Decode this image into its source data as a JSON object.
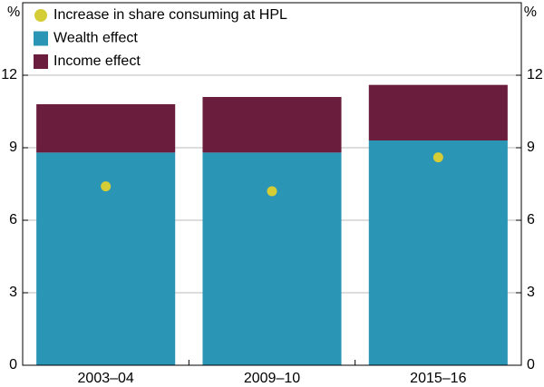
{
  "chart_data": {
    "type": "bar",
    "stacked": true,
    "y_label": "%",
    "y2_label": "%",
    "categories": [
      "2003–04",
      "2009–10",
      "2015–16"
    ],
    "series": [
      {
        "name": "Increase in share consuming at HPL",
        "type": "scatter",
        "color": "#d5cd36",
        "values": [
          7.4,
          7.2,
          8.6
        ]
      },
      {
        "name": "Wealth effect",
        "type": "bar",
        "color": "#2a95b5",
        "values": [
          8.8,
          8.8,
          9.3
        ]
      },
      {
        "name": "Income effect",
        "type": "bar",
        "color": "#6b1d3e",
        "values": [
          2.0,
          2.3,
          2.3
        ]
      }
    ],
    "ylim": [
      0,
      15
    ],
    "yticks": [
      0,
      3,
      6,
      9,
      12
    ],
    "y2lim": [
      0,
      15
    ],
    "y2ticks": [
      0,
      3,
      6,
      9,
      12
    ],
    "grid": true,
    "legend": "top-left"
  }
}
